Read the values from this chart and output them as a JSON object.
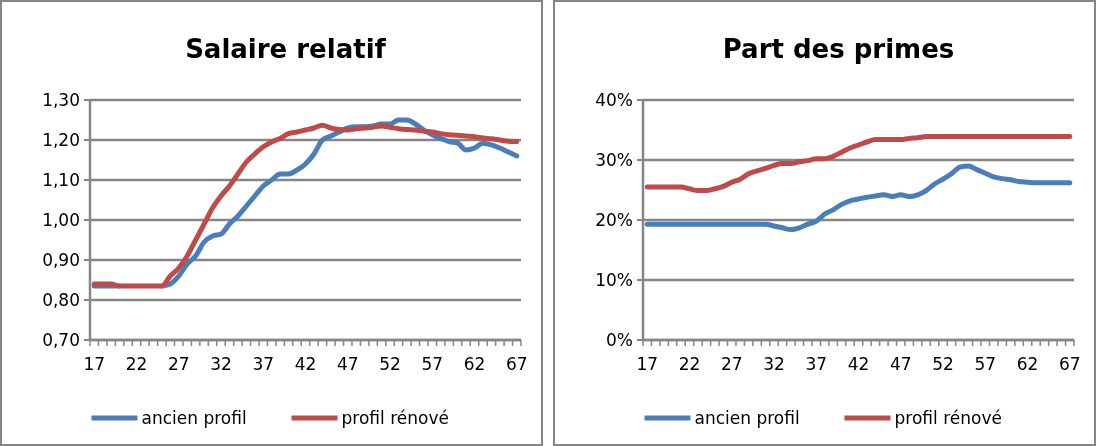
{
  "chart_data": [
    {
      "type": "line",
      "title": "Salaire relatif",
      "categories": [
        "17",
        null,
        null,
        null,
        null,
        "22",
        null,
        null,
        null,
        null,
        "27",
        null,
        null,
        null,
        null,
        "32",
        null,
        null,
        null,
        null,
        "37",
        null,
        null,
        null,
        null,
        "42",
        null,
        null,
        null,
        null,
        "47",
        null,
        null,
        null,
        null,
        "52",
        null,
        null,
        null,
        null,
        "57",
        null,
        null,
        null,
        null,
        "62",
        null,
        null,
        null,
        null,
        "67"
      ],
      "series": [
        {
          "name": "ancien profil",
          "color": "#4a7ebb",
          "values": [
            0.835,
            0.835,
            0.835,
            0.835,
            null,
            null,
            null,
            null,
            0.835,
            0.84,
            0.86,
            0.89,
            0.91,
            0.945,
            0.96,
            0.965,
            0.99,
            1.01,
            1.035,
            1.06,
            1.085,
            1.1,
            1.115,
            1.115,
            1.125,
            1.14,
            1.165,
            1.2,
            1.21,
            1.22,
            1.23,
            1.233,
            1.233,
            1.235,
            1.24,
            1.24,
            1.25,
            1.25,
            1.24,
            1.225,
            1.213,
            1.204,
            1.196,
            1.192,
            1.175,
            1.18,
            1.192,
            1.188,
            1.18,
            1.17,
            1.16
          ]
        },
        {
          "name": "profil rénové",
          "color": "#be4b48",
          "values": [
            0.84,
            0.84,
            0.84,
            0.835,
            0.835,
            0.835,
            0.835,
            0.835,
            0.835,
            0.86,
            0.88,
            0.91,
            0.95,
            0.99,
            1.03,
            1.06,
            1.085,
            1.115,
            1.145,
            1.165,
            1.183,
            1.195,
            1.204,
            1.216,
            1.22,
            1.225,
            1.23,
            1.237,
            1.23,
            1.226,
            1.225,
            1.228,
            1.23,
            1.232,
            1.235,
            1.232,
            1.228,
            1.226,
            1.225,
            1.222,
            1.22,
            1.216,
            1.213,
            1.212,
            1.21,
            1.208,
            1.205,
            1.203,
            1.2,
            1.197,
            1.196
          ]
        }
      ],
      "ylim": [
        0.7,
        1.3
      ],
      "yticks": [
        {
          "value": 0.7,
          "label": "0,70"
        },
        {
          "value": 0.8,
          "label": "0,80"
        },
        {
          "value": 0.9,
          "label": "0,90"
        },
        {
          "value": 1.0,
          "label": "1,00"
        },
        {
          "value": 1.1,
          "label": "1,10"
        },
        {
          "value": 1.2,
          "label": "1,20"
        },
        {
          "value": 1.3,
          "label": "1,30"
        }
      ],
      "grid": "y",
      "legend": "bottom"
    },
    {
      "type": "line",
      "title": "Part des primes",
      "categories": [
        "17",
        null,
        null,
        null,
        null,
        "22",
        null,
        null,
        null,
        null,
        "27",
        null,
        null,
        null,
        null,
        "32",
        null,
        null,
        null,
        null,
        "37",
        null,
        null,
        null,
        null,
        "42",
        null,
        null,
        null,
        null,
        "47",
        null,
        null,
        null,
        null,
        "52",
        null,
        null,
        null,
        null,
        "57",
        null,
        null,
        null,
        null,
        "62",
        null,
        null,
        null,
        null,
        "67"
      ],
      "series": [
        {
          "name": "ancien profil",
          "color": "#4a7ebb",
          "values": [
            19.3,
            19.3,
            19.3,
            19.3,
            19.3,
            19.3,
            19.3,
            19.3,
            19.3,
            19.3,
            19.3,
            19.3,
            19.3,
            19.3,
            19.3,
            19,
            18.7,
            18.4,
            18.7,
            19.3,
            19.8,
            21,
            21.7,
            22.6,
            23.2,
            23.5,
            23.8,
            24,
            24.2,
            23.9,
            24.2,
            23.9,
            24.2,
            24.9,
            26,
            26.8,
            27.7,
            28.8,
            29,
            28.4,
            27.8,
            27.2,
            26.9,
            26.7,
            26.4,
            26.3,
            26.2,
            26.2,
            26.2,
            26.2,
            26.2
          ]
        },
        {
          "name": "profil rénové",
          "color": "#be4b48",
          "values": [
            25.5,
            25.5,
            25.5,
            25.5,
            25.5,
            25.2,
            24.9,
            24.9,
            25.2,
            25.6,
            26.3,
            26.8,
            27.7,
            28.2,
            28.6,
            29.1,
            29.4,
            29.4,
            29.7,
            29.9,
            30.2,
            30.2,
            30.6,
            31.3,
            32,
            32.5,
            33,
            33.4,
            33.4,
            33.4,
            33.4,
            33.6,
            33.7,
            33.9,
            33.9,
            33.9,
            33.9,
            33.9,
            33.9,
            33.9,
            33.9,
            33.9,
            33.9,
            33.9,
            33.9,
            33.9,
            33.9,
            33.9,
            33.9,
            33.9,
            33.9
          ]
        }
      ],
      "ylim": [
        0,
        40
      ],
      "yticks": [
        {
          "value": 0,
          "label": "0%"
        },
        {
          "value": 10,
          "label": "10%"
        },
        {
          "value": 20,
          "label": "20%"
        },
        {
          "value": 30,
          "label": "30%"
        },
        {
          "value": 40,
          "label": "40%"
        }
      ],
      "grid": "y",
      "legend": "bottom"
    }
  ]
}
